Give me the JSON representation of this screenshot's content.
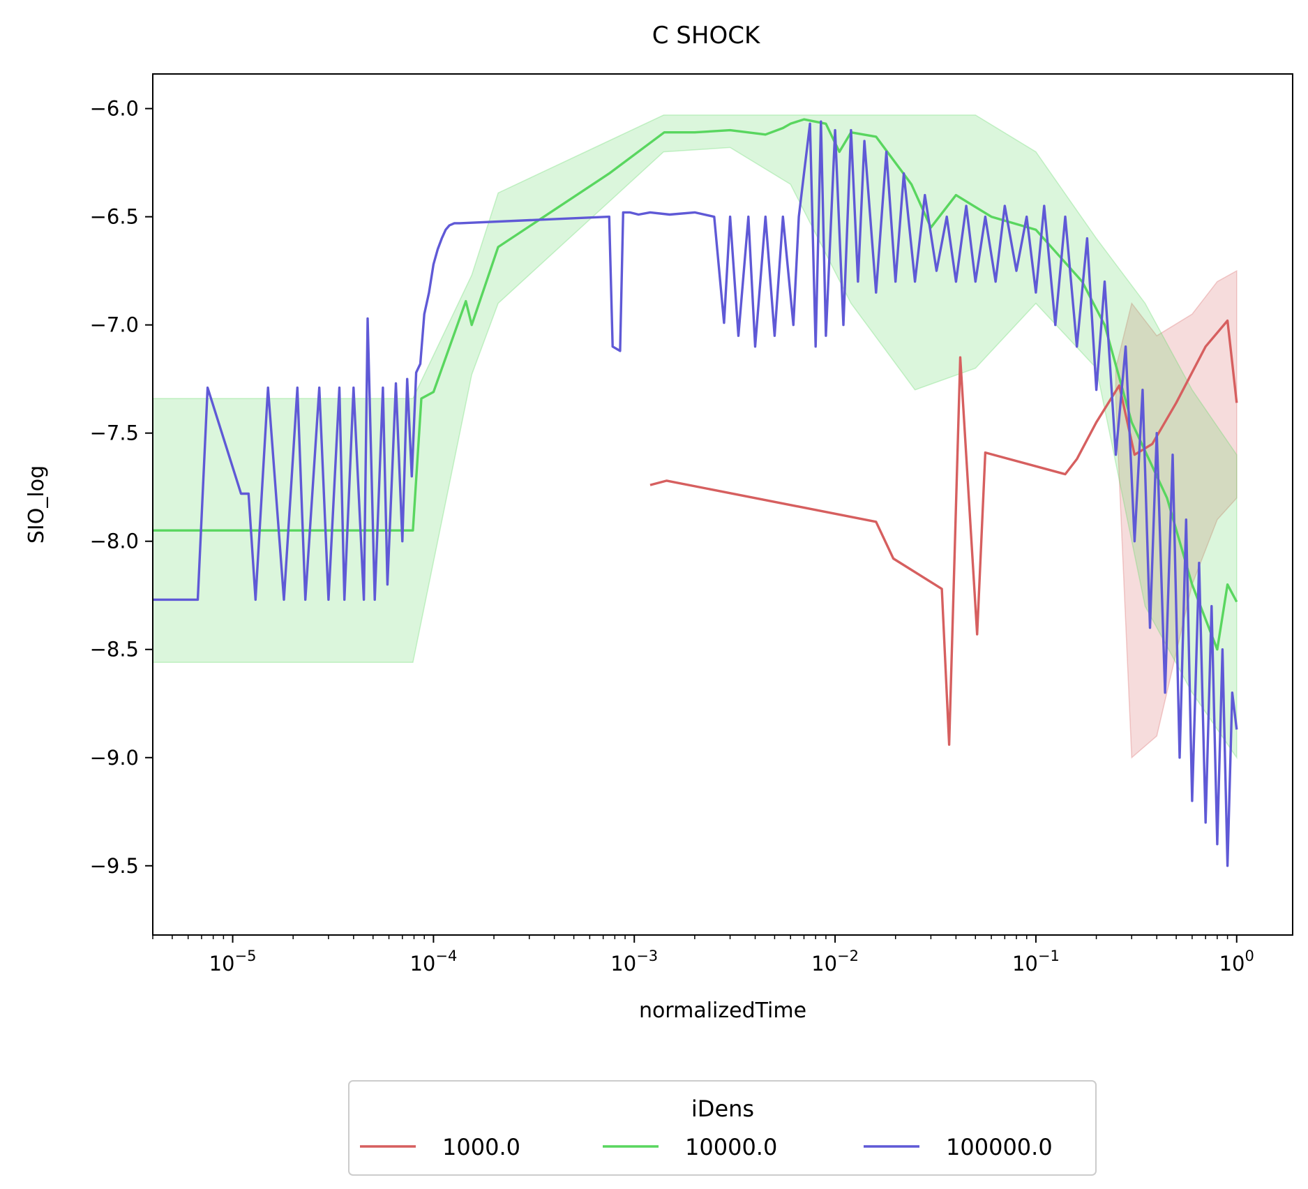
{
  "chart_data": {
    "type": "line",
    "title": "C SHOCK",
    "xlabel": "normalizedTime",
    "ylabel": "SIO_log",
    "xscale": "log",
    "xlim": [
      4e-06,
      1.9
    ],
    "ylim": [
      -9.82,
      -5.84
    ],
    "x_ticks": [
      {
        "value": 1e-05,
        "base": "10",
        "exp": "−5"
      },
      {
        "value": 0.0001,
        "base": "10",
        "exp": "−4"
      },
      {
        "value": 0.001,
        "base": "10",
        "exp": "−3"
      },
      {
        "value": 0.01,
        "base": "10",
        "exp": "−2"
      },
      {
        "value": 0.1,
        "base": "10",
        "exp": "−1"
      },
      {
        "value": 1,
        "base": "10",
        "exp": "0"
      }
    ],
    "y_ticks": [
      {
        "value": -6.0,
        "label": "−6.0"
      },
      {
        "value": -6.5,
        "label": "−6.5"
      },
      {
        "value": -7.0,
        "label": "−7.0"
      },
      {
        "value": -7.5,
        "label": "−7.5"
      },
      {
        "value": -8.0,
        "label": "−8.0"
      },
      {
        "value": -8.5,
        "label": "−8.5"
      },
      {
        "value": -9.0,
        "label": "−9.0"
      },
      {
        "value": -9.5,
        "label": "−9.5"
      }
    ],
    "grid": false,
    "legend": {
      "title": "iDens",
      "placement": "bottom-center-outside",
      "ncol": 3
    },
    "series": [
      {
        "name": "1000.0",
        "color": "#d65f5f",
        "x": [
          0.0012,
          0.00145,
          0.016,
          0.0195,
          0.034,
          0.037,
          0.042,
          0.051,
          0.056,
          0.14,
          0.16,
          0.2,
          0.26,
          0.31,
          0.38,
          0.5,
          0.7,
          0.9,
          1.0
        ],
        "y": [
          -7.74,
          -7.72,
          -7.91,
          -8.08,
          -8.22,
          -8.94,
          -7.15,
          -8.43,
          -7.59,
          -7.69,
          -7.62,
          -7.45,
          -7.28,
          -7.6,
          -7.55,
          -7.36,
          -7.1,
          -6.98,
          -7.36
        ],
        "band": [
          {
            "x": 0.25,
            "lo": -7.35,
            "hi": -7.2
          },
          {
            "x": 0.3,
            "lo": -9.0,
            "hi": -6.9
          },
          {
            "x": 0.4,
            "lo": -8.9,
            "hi": -7.05
          },
          {
            "x": 0.6,
            "lo": -8.2,
            "hi": -6.95
          },
          {
            "x": 0.8,
            "lo": -7.9,
            "hi": -6.8
          },
          {
            "x": 1.0,
            "lo": -7.8,
            "hi": -6.75
          }
        ]
      },
      {
        "name": "10000.0",
        "color": "#59d65f",
        "x": [
          4e-06,
          7.9e-05,
          8.7e-05,
          0.0001,
          0.000145,
          0.000155,
          0.00021,
          0.00075,
          0.00141,
          0.002,
          0.003,
          0.0045,
          0.0055,
          0.006,
          0.007,
          0.009,
          0.0105,
          0.012,
          0.016,
          0.024,
          0.03,
          0.04,
          0.06,
          0.1,
          0.17,
          0.22,
          0.3,
          0.45,
          0.6,
          0.8,
          0.9,
          1.0
        ],
        "y": [
          -7.95,
          -7.95,
          -7.34,
          -7.31,
          -6.89,
          -7.0,
          -6.64,
          -6.3,
          -6.11,
          -6.11,
          -6.1,
          -6.12,
          -6.09,
          -6.07,
          -6.05,
          -6.07,
          -6.2,
          -6.11,
          -6.13,
          -6.35,
          -6.55,
          -6.4,
          -6.5,
          -6.56,
          -6.8,
          -7.0,
          -7.45,
          -7.8,
          -8.2,
          -8.5,
          -8.2,
          -8.28
        ],
        "band": [
          {
            "x": 4e-06,
            "lo": -8.56,
            "hi": -7.34
          },
          {
            "x": 7.9e-05,
            "lo": -8.56,
            "hi": -7.34
          },
          {
            "x": 0.000155,
            "lo": -7.23,
            "hi": -6.77
          },
          {
            "x": 0.00021,
            "lo": -6.9,
            "hi": -6.39
          },
          {
            "x": 0.0014,
            "lo": -6.2,
            "hi": -6.03
          },
          {
            "x": 0.003,
            "lo": -6.18,
            "hi": -6.03
          },
          {
            "x": 0.006,
            "lo": -6.35,
            "hi": -6.03
          },
          {
            "x": 0.012,
            "lo": -6.9,
            "hi": -6.03
          },
          {
            "x": 0.025,
            "lo": -7.3,
            "hi": -6.03
          },
          {
            "x": 0.05,
            "lo": -7.2,
            "hi": -6.03
          },
          {
            "x": 0.1,
            "lo": -6.9,
            "hi": -6.2
          },
          {
            "x": 0.2,
            "lo": -7.2,
            "hi": -6.6
          },
          {
            "x": 0.35,
            "lo": -8.3,
            "hi": -6.9
          },
          {
            "x": 0.6,
            "lo": -8.7,
            "hi": -7.3
          },
          {
            "x": 1.0,
            "lo": -9.0,
            "hi": -7.6
          }
        ]
      },
      {
        "name": "100000.0",
        "color": "#5f59d6",
        "x": [
          4e-06,
          6.7e-06,
          7.5e-06,
          1.1e-05,
          1.2e-05,
          1.3e-05,
          1.5e-05,
          1.8e-05,
          2.1e-05,
          2.3e-05,
          2.7e-05,
          3e-05,
          3.4e-05,
          3.6e-05,
          4e-05,
          4.5e-05,
          4.7e-05,
          5.1e-05,
          5.6e-05,
          5.9e-05,
          6.5e-05,
          7e-05,
          7.4e-05,
          7.8e-05,
          8.2e-05,
          8.6e-05,
          9e-05,
          9.5e-05,
          0.0001,
          0.000105,
          0.00011,
          0.000115,
          0.00012,
          0.000127,
          0.000135,
          0.00075,
          0.00078,
          0.00085,
          0.00088,
          0.00095,
          0.00105,
          0.0012,
          0.0015,
          0.002,
          0.0025,
          0.0028,
          0.003,
          0.0033,
          0.0037,
          0.004,
          0.0045,
          0.005,
          0.0055,
          0.0062,
          0.0066,
          0.007,
          0.0075,
          0.008,
          0.0085,
          0.009,
          0.01,
          0.011,
          0.012,
          0.013,
          0.014,
          0.016,
          0.018,
          0.02,
          0.022,
          0.025,
          0.028,
          0.032,
          0.036,
          0.04,
          0.045,
          0.05,
          0.056,
          0.063,
          0.07,
          0.08,
          0.09,
          0.1,
          0.11,
          0.125,
          0.14,
          0.16,
          0.18,
          0.2,
          0.22,
          0.25,
          0.28,
          0.31,
          0.34,
          0.37,
          0.4,
          0.44,
          0.48,
          0.52,
          0.56,
          0.6,
          0.65,
          0.7,
          0.75,
          0.8,
          0.85,
          0.9,
          0.95,
          1.0
        ],
        "y": [
          -8.27,
          -8.27,
          -7.29,
          -7.78,
          -7.78,
          -8.27,
          -7.29,
          -8.27,
          -7.29,
          -8.27,
          -7.29,
          -8.27,
          -7.29,
          -8.27,
          -7.29,
          -8.27,
          -6.97,
          -8.27,
          -7.29,
          -8.2,
          -7.27,
          -8.0,
          -7.25,
          -7.7,
          -7.22,
          -7.18,
          -6.95,
          -6.85,
          -6.72,
          -6.65,
          -6.6,
          -6.56,
          -6.54,
          -6.53,
          -6.53,
          -6.5,
          -7.1,
          -7.12,
          -6.48,
          -6.48,
          -6.49,
          -6.48,
          -6.49,
          -6.48,
          -6.5,
          -6.99,
          -6.5,
          -7.05,
          -6.5,
          -7.1,
          -6.5,
          -7.05,
          -6.5,
          -7.0,
          -6.5,
          -6.3,
          -6.07,
          -7.1,
          -6.06,
          -7.05,
          -6.1,
          -7.0,
          -6.1,
          -6.8,
          -6.15,
          -6.85,
          -6.2,
          -6.8,
          -6.3,
          -6.8,
          -6.4,
          -6.75,
          -6.5,
          -6.8,
          -6.45,
          -6.8,
          -6.5,
          -6.8,
          -6.45,
          -6.75,
          -6.5,
          -6.85,
          -6.45,
          -7.0,
          -6.5,
          -7.1,
          -6.6,
          -7.3,
          -6.8,
          -7.6,
          -7.1,
          -8.0,
          -7.3,
          -8.4,
          -7.5,
          -8.7,
          -7.6,
          -9.0,
          -7.9,
          -9.2,
          -8.1,
          -9.3,
          -8.3,
          -9.4,
          -8.5,
          -9.5,
          -8.7,
          -8.87
        ]
      }
    ]
  }
}
